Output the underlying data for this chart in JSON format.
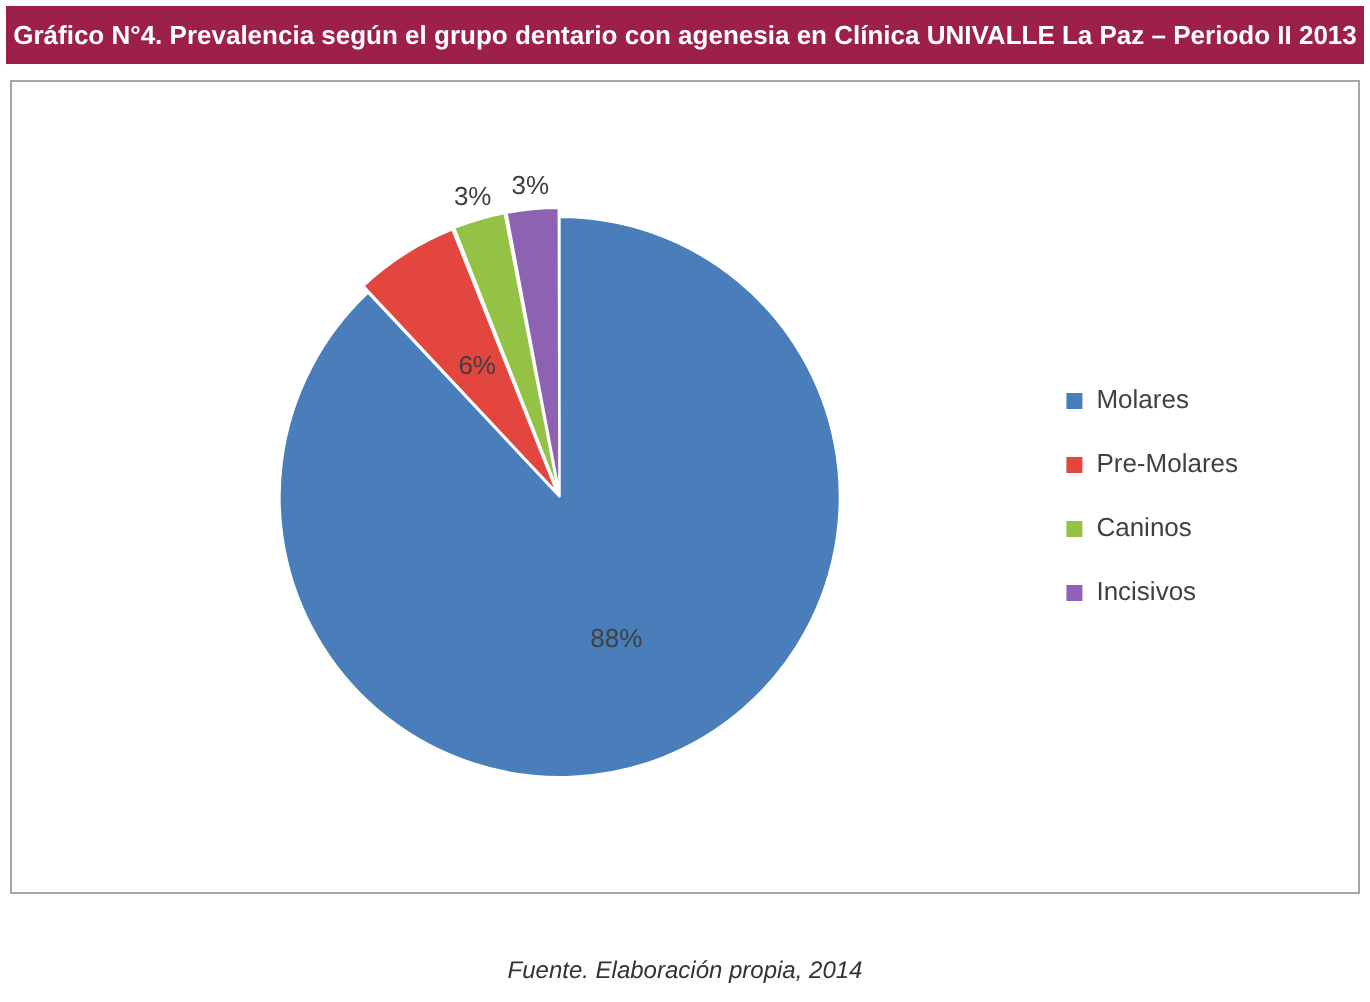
{
  "chart_data": {
    "type": "pie",
    "title": "Gráfico N°4. Prevalencia según el grupo dentario con agenesia en Clínica UNIVALLE La Paz – Periodo II 2013",
    "categories": [
      "Molares",
      "Pre-Molares",
      "Caninos",
      "Incisivos"
    ],
    "values": [
      88,
      6,
      3,
      3
    ],
    "colors": [
      "#4a7ebb",
      "#e2463f",
      "#93c245",
      "#8e62b3"
    ],
    "value_labels": [
      "88%",
      "6%",
      "3%",
      "3%"
    ],
    "legend": "right",
    "annotations": [
      "Fuente. Elaboración propia, 2014"
    ]
  }
}
